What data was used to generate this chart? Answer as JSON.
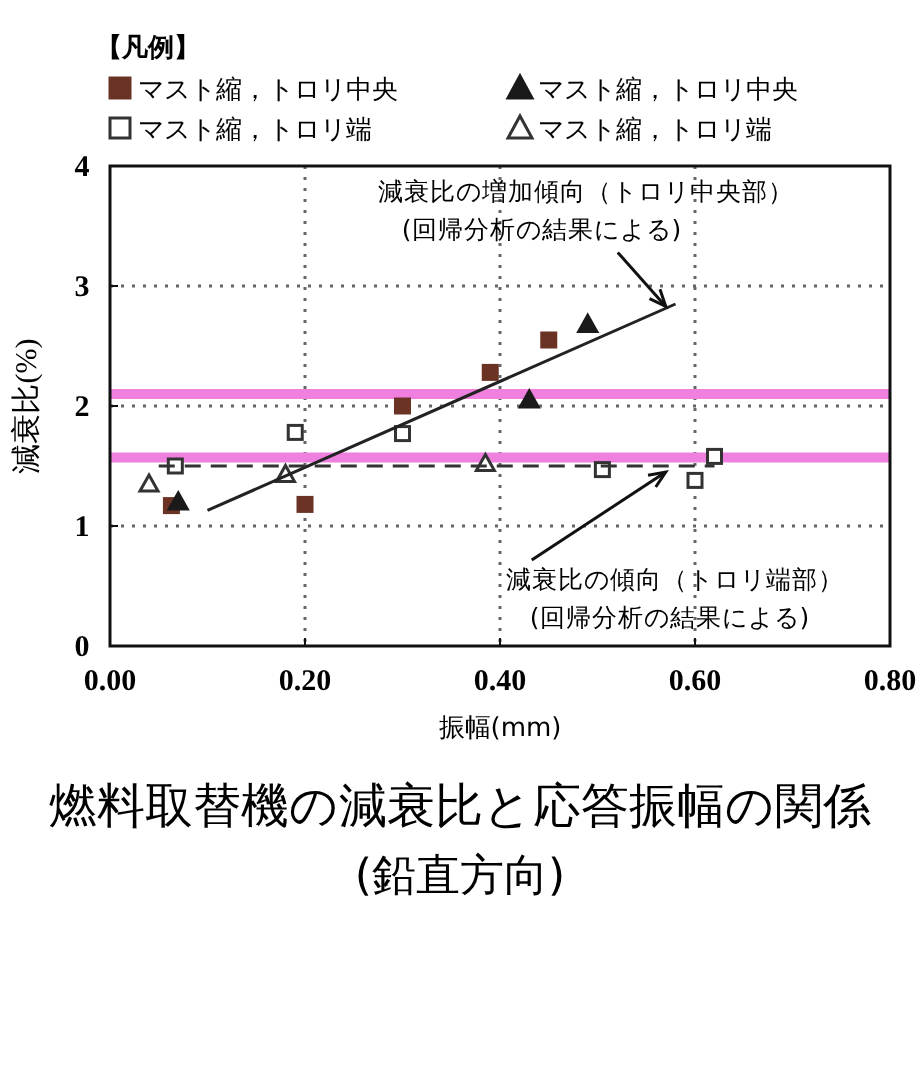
{
  "chart_data": {
    "type": "scatter",
    "title": "燃料取替機の減衰比と応答振幅の関係",
    "subtitle": "(鉛直方向)",
    "xlabel": "振幅(mm)",
    "ylabel": "減衰比(%)",
    "legend_title": "【凡例】",
    "xlim": [
      0,
      0.8
    ],
    "xticks": [
      {
        "value": 0,
        "label": "0.00"
      },
      {
        "value": 0.2,
        "label": "0.20"
      },
      {
        "value": 0.4,
        "label": "0.40"
      },
      {
        "value": 0.6,
        "label": "0.60"
      },
      {
        "value": 0.8,
        "label": "0.80"
      }
    ],
    "ylim": [
      0,
      4
    ],
    "yticks": [
      0,
      1,
      2,
      3,
      4
    ],
    "grid": true,
    "legend": "top",
    "series": [
      {
        "name": "マスト縮，トロリ中央",
        "color": "#6b3324",
        "marker": "square",
        "x": [
          0.45,
          0.39,
          0.3,
          0.2,
          0.063
        ],
        "values": [
          2.55,
          2.28,
          2.0,
          1.18,
          1.17
        ]
      },
      {
        "name": "マスト縮，トロリ端",
        "color": "#333333",
        "marker": "square",
        "x": [
          0.62,
          0.6,
          0.505,
          0.3,
          0.19,
          0.067
        ],
        "values": [
          1.58,
          1.38,
          1.47,
          1.77,
          1.78,
          1.5
        ]
      },
      {
        "name": "マスト縮，トロリ中央",
        "color": "#1a1a1a",
        "marker": "triangle",
        "x": [
          0.49,
          0.43,
          0.07
        ],
        "values": [
          2.68,
          2.05,
          1.2
        ]
      },
      {
        "name": "マスト縮，トロリ端",
        "color": "#333333",
        "marker": "triangle",
        "x": [
          0.385,
          0.18,
          0.04
        ],
        "values": [
          1.52,
          1.43,
          1.35
        ]
      },
      {
        "type": "line",
        "color": "#222222",
        "line_style": "solid",
        "marker": "none",
        "x": [
          0.1,
          0.58
        ],
        "values": [
          1.13,
          2.85
        ]
      },
      {
        "type": "line",
        "color": "#333333",
        "line_style": "dashed",
        "marker": "none",
        "x": [
          0.05,
          0.62
        ],
        "values": [
          1.5,
          1.5
        ]
      }
    ],
    "ref_lines": [
      {
        "axis": "y",
        "value": 2.1,
        "color": "#f080e0"
      },
      {
        "axis": "y",
        "value": 1.57,
        "color": "#f080e0"
      }
    ],
    "annotations": [
      {
        "text": "減衰比の増加傾向（トロリ中央部）\n(回帰分析の結果による)",
        "x": 0.57,
        "y": 2.83
      },
      {
        "text": "減衰比の傾向（トロリ端部）\n(回帰分析の結果による)",
        "x": 0.57,
        "y": 1.45
      }
    ]
  }
}
